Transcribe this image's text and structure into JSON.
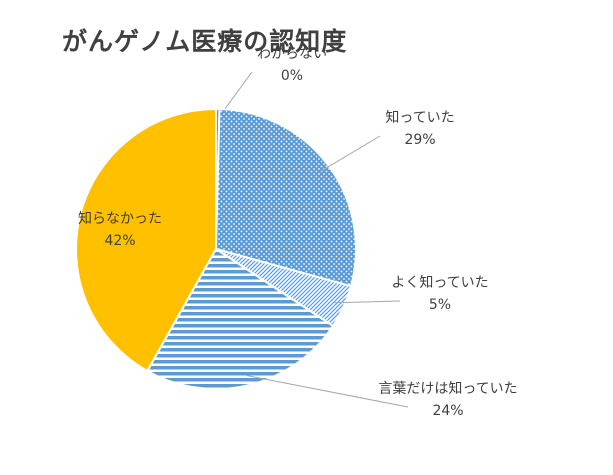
{
  "chart_data": {
    "type": "pie",
    "title": "がんゲノム医療の認知度",
    "categories": [
      "わからない",
      "知っていた",
      "よく知っていた",
      "言葉だけは知っていた",
      "知らなかった"
    ],
    "values": [
      0.4,
      29,
      5,
      24,
      42
    ],
    "labels": [
      "0%",
      "29%",
      "5%",
      "24%",
      "42%"
    ],
    "colors": [
      "#5b9bd5",
      "#5b9bd5",
      "#5b9bd5",
      "#5b9bd5",
      "#ffc000"
    ],
    "patterns": [
      "solid",
      "dots",
      "diagonal",
      "horizontal",
      "solid"
    ],
    "legend": "none"
  }
}
